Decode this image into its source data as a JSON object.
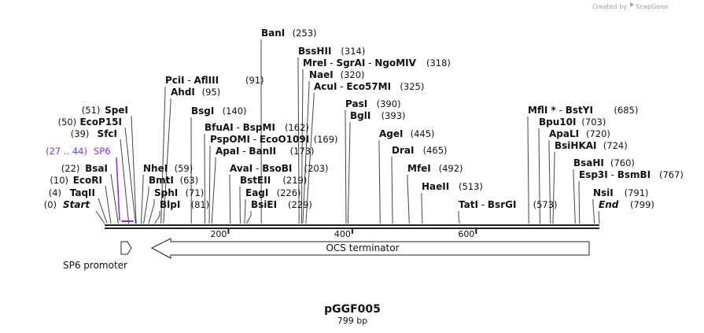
{
  "header": {
    "created_by": "Created by",
    "brand": "SnapGene"
  },
  "map": {
    "title": "pGGF005",
    "length_label": "799 bp",
    "ticks": [
      {
        "label": "200",
        "bp": 200
      },
      {
        "label": "400",
        "bp": 400
      },
      {
        "label": "600",
        "bp": 600
      }
    ],
    "sites": [
      {
        "name": "BanI",
        "pos": "(253)",
        "bp": 253
      },
      {
        "name": "BssHII",
        "pos": "(314)",
        "bp": 314
      },
      {
        "name": "MreI - SgrAI - NgoMIV",
        "pos": "(318)",
        "bp": 318
      },
      {
        "name": "NaeI",
        "pos": "(320)",
        "bp": 320
      },
      {
        "name": "AcuI - Eco57MI",
        "pos": "(325)",
        "bp": 325
      },
      {
        "name": "PciI - AflIII",
        "pos": "(91)",
        "bp": 91
      },
      {
        "name": "AhdI",
        "pos": "(95)",
        "bp": 95
      },
      {
        "name": "PasI",
        "pos": "(390)",
        "bp": 390
      },
      {
        "name": "BglI",
        "pos": "(393)",
        "bp": 393
      },
      {
        "name": "BsgI",
        "pos": "(140)",
        "bp": 140
      },
      {
        "name": "SpeI",
        "pos": "(51)",
        "bp": 51
      },
      {
        "name": "EcoP15I",
        "pos": "(50)",
        "bp": 50
      },
      {
        "name": "SfcI",
        "pos": "(39)",
        "bp": 39
      },
      {
        "name": "BfuAI - BspMI",
        "pos": "(162)",
        "bp": 162
      },
      {
        "name": "PspOMI - EcoO109I",
        "pos": "(169)",
        "bp": 169
      },
      {
        "name": "ApaI - BanII",
        "pos": "(173)",
        "bp": 173
      },
      {
        "name": "AvaI - BsoBI",
        "pos": "(203)",
        "bp": 203
      },
      {
        "name": "BstEII",
        "pos": "(219)",
        "bp": 219
      },
      {
        "name": "EagI",
        "pos": "(226)",
        "bp": 226
      },
      {
        "name": "BsiEI",
        "pos": "(229)",
        "bp": 229
      },
      {
        "name": "NheI",
        "pos": "(59)",
        "bp": 59
      },
      {
        "name": "BmtI",
        "pos": "(63)",
        "bp": 63
      },
      {
        "name": "SphI",
        "pos": "(71)",
        "bp": 71
      },
      {
        "name": "BlpI",
        "pos": "(81)",
        "bp": 81
      },
      {
        "name": "BsaI",
        "pos": "(22)",
        "bp": 22
      },
      {
        "name": "EcoRI",
        "pos": "(10)",
        "bp": 10
      },
      {
        "name": "TaqII",
        "pos": "(4)",
        "bp": 4
      },
      {
        "name": "AgeI",
        "pos": "(445)",
        "bp": 445
      },
      {
        "name": "DraI",
        "pos": "(465)",
        "bp": 465
      },
      {
        "name": "MfeI",
        "pos": "(492)",
        "bp": 492
      },
      {
        "name": "HaeII",
        "pos": "(513)",
        "bp": 513
      },
      {
        "name": "TatI - BsrGI",
        "pos": "(573)",
        "bp": 573
      },
      {
        "name": "MflI * - BstYI",
        "pos": "(685)",
        "bp": 685
      },
      {
        "name": "Bpu10I",
        "pos": "(703)",
        "bp": 703
      },
      {
        "name": "ApaLI",
        "pos": "(720)",
        "bp": 720
      },
      {
        "name": "BsiHKAI",
        "pos": "(724)",
        "bp": 724
      },
      {
        "name": "BsaHI",
        "pos": "(760)",
        "bp": 760
      },
      {
        "name": "Esp3I - BsmBI",
        "pos": "(767)",
        "bp": 767
      },
      {
        "name": "NsiI",
        "pos": "(791)",
        "bp": 791
      }
    ],
    "ends": {
      "start": {
        "label": "Start",
        "pos": "(0)",
        "bp": 0
      },
      "end": {
        "label": "End",
        "pos": "(799)",
        "bp": 799
      }
    },
    "primer": {
      "range": "(27 .. 44)",
      "name": "SP6",
      "start_bp": 27,
      "end_bp": 44
    },
    "features": [
      {
        "name": "SP6 promoter",
        "start_bp": 27,
        "end_bp": 44,
        "direction": "forward"
      },
      {
        "name": "OCS terminator",
        "start_bp": 93,
        "end_bp": 799,
        "direction": "reverse"
      }
    ]
  },
  "colors": {
    "primer": "#8a2be2",
    "line": "#333333",
    "brand": "#9aa0a6"
  }
}
